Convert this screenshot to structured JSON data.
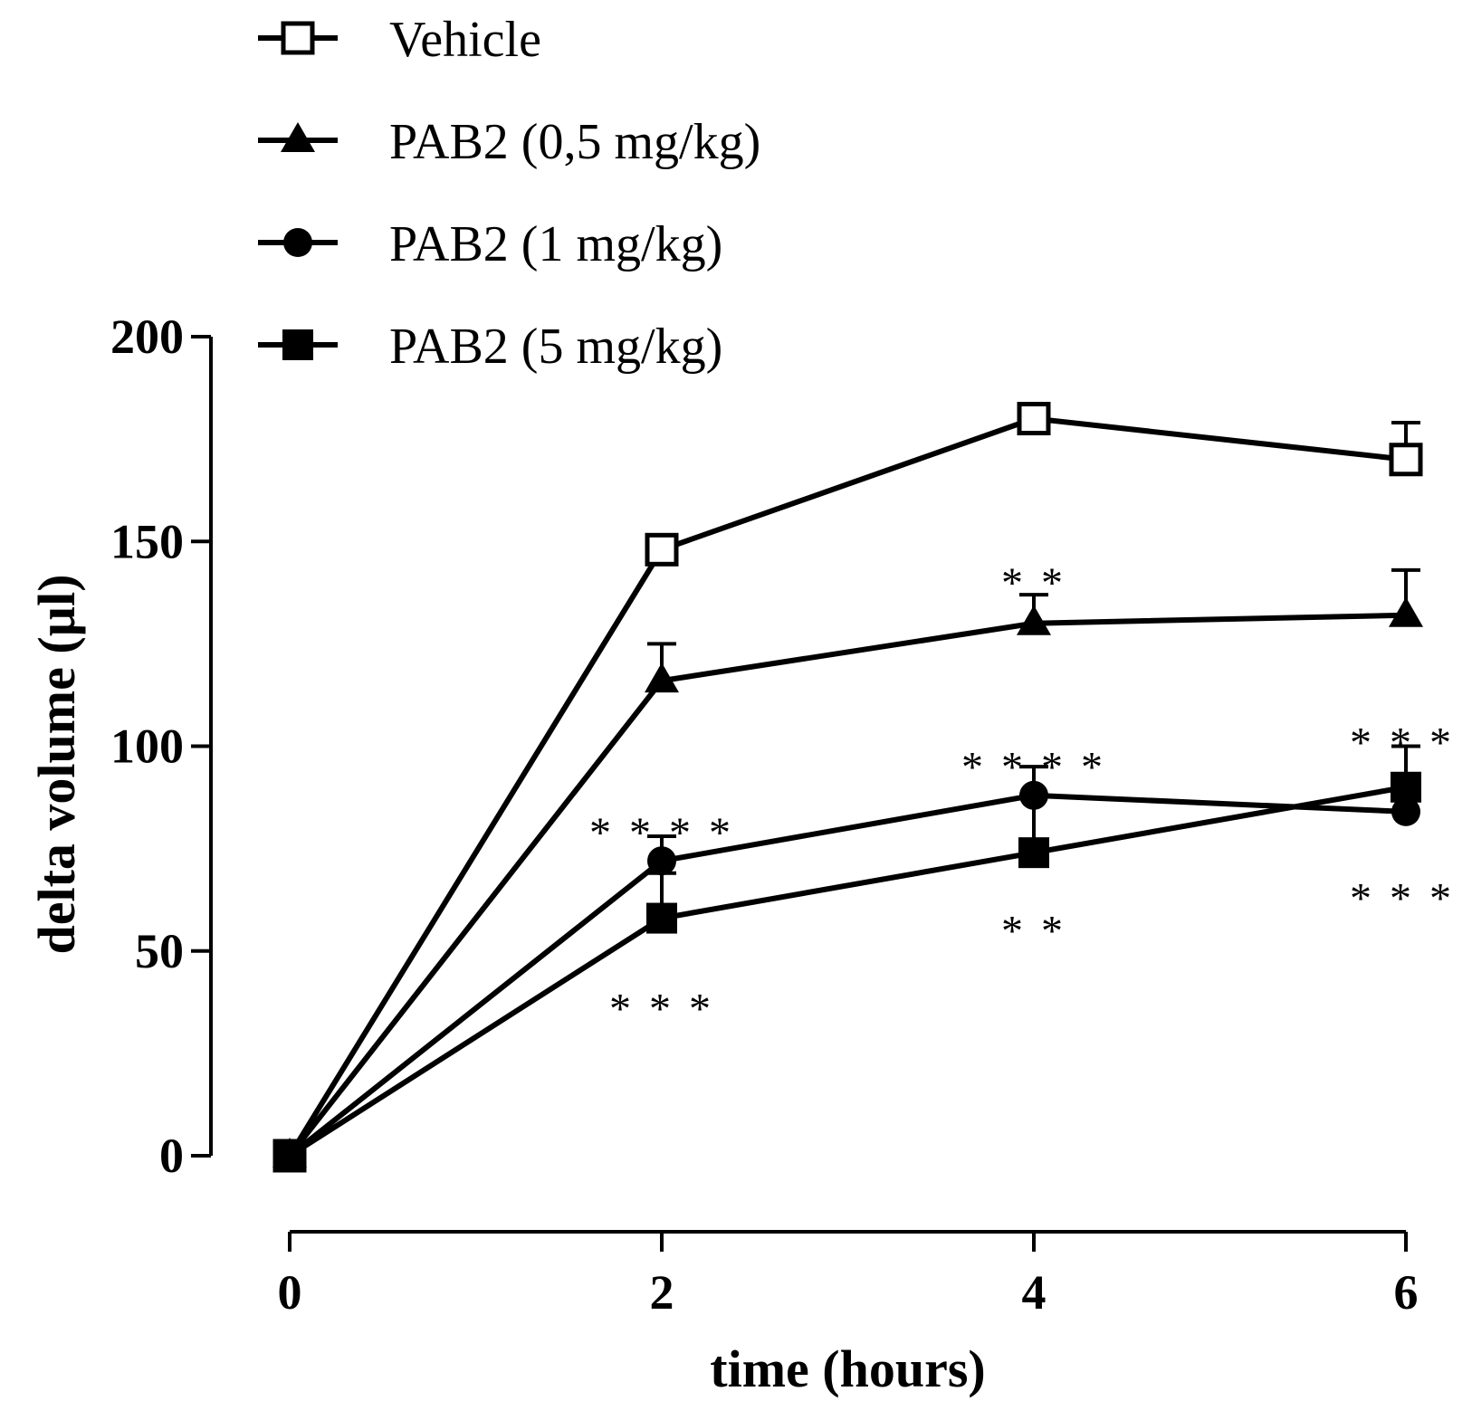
{
  "chart_data": {
    "type": "line",
    "title": "",
    "xlabel": "time (hours)",
    "ylabel": "delta volume (µl)",
    "x": [
      0,
      2,
      4,
      6
    ],
    "xlim": [
      0,
      6
    ],
    "ylim": [
      0,
      200
    ],
    "xticks": [
      0,
      2,
      4,
      6
    ],
    "yticks": [
      0,
      50,
      100,
      150,
      200
    ],
    "grid": false,
    "legend_position": "top-left",
    "colors": {
      "line": "#000000",
      "background": "#ffffff"
    },
    "series": [
      {
        "name": "Vehicle",
        "marker": "open-square",
        "values": [
          0,
          148,
          180,
          170
        ],
        "errors": [
          0,
          2,
          0,
          9
        ]
      },
      {
        "name": "PAB2 (0,5 mg/kg)",
        "marker": "filled-triangle",
        "values": [
          0,
          116,
          130,
          132
        ],
        "errors": [
          0,
          9,
          7,
          11
        ]
      },
      {
        "name": "PAB2 (1 mg/kg)",
        "marker": "filled-circle",
        "values": [
          0,
          72,
          88,
          84
        ],
        "errors": [
          0,
          6,
          7,
          0
        ]
      },
      {
        "name": "PAB2 (5 mg/kg)",
        "marker": "filled-square",
        "values": [
          0,
          58,
          74,
          90
        ],
        "errors": [
          0,
          11,
          14,
          10
        ]
      }
    ],
    "annotations": [
      {
        "text": "* * * *",
        "x": 2,
        "y": 82
      },
      {
        "text": "* * *",
        "x": 2,
        "y": 39
      },
      {
        "text": "* *",
        "x": 4,
        "y": 143
      },
      {
        "text": "* * * *",
        "x": 4,
        "y": 98
      },
      {
        "text": "* *",
        "x": 4,
        "y": 58
      },
      {
        "text": "* * *",
        "x": 6,
        "y": 104
      },
      {
        "text": "* * *",
        "x": 6,
        "y": 66
      }
    ]
  }
}
